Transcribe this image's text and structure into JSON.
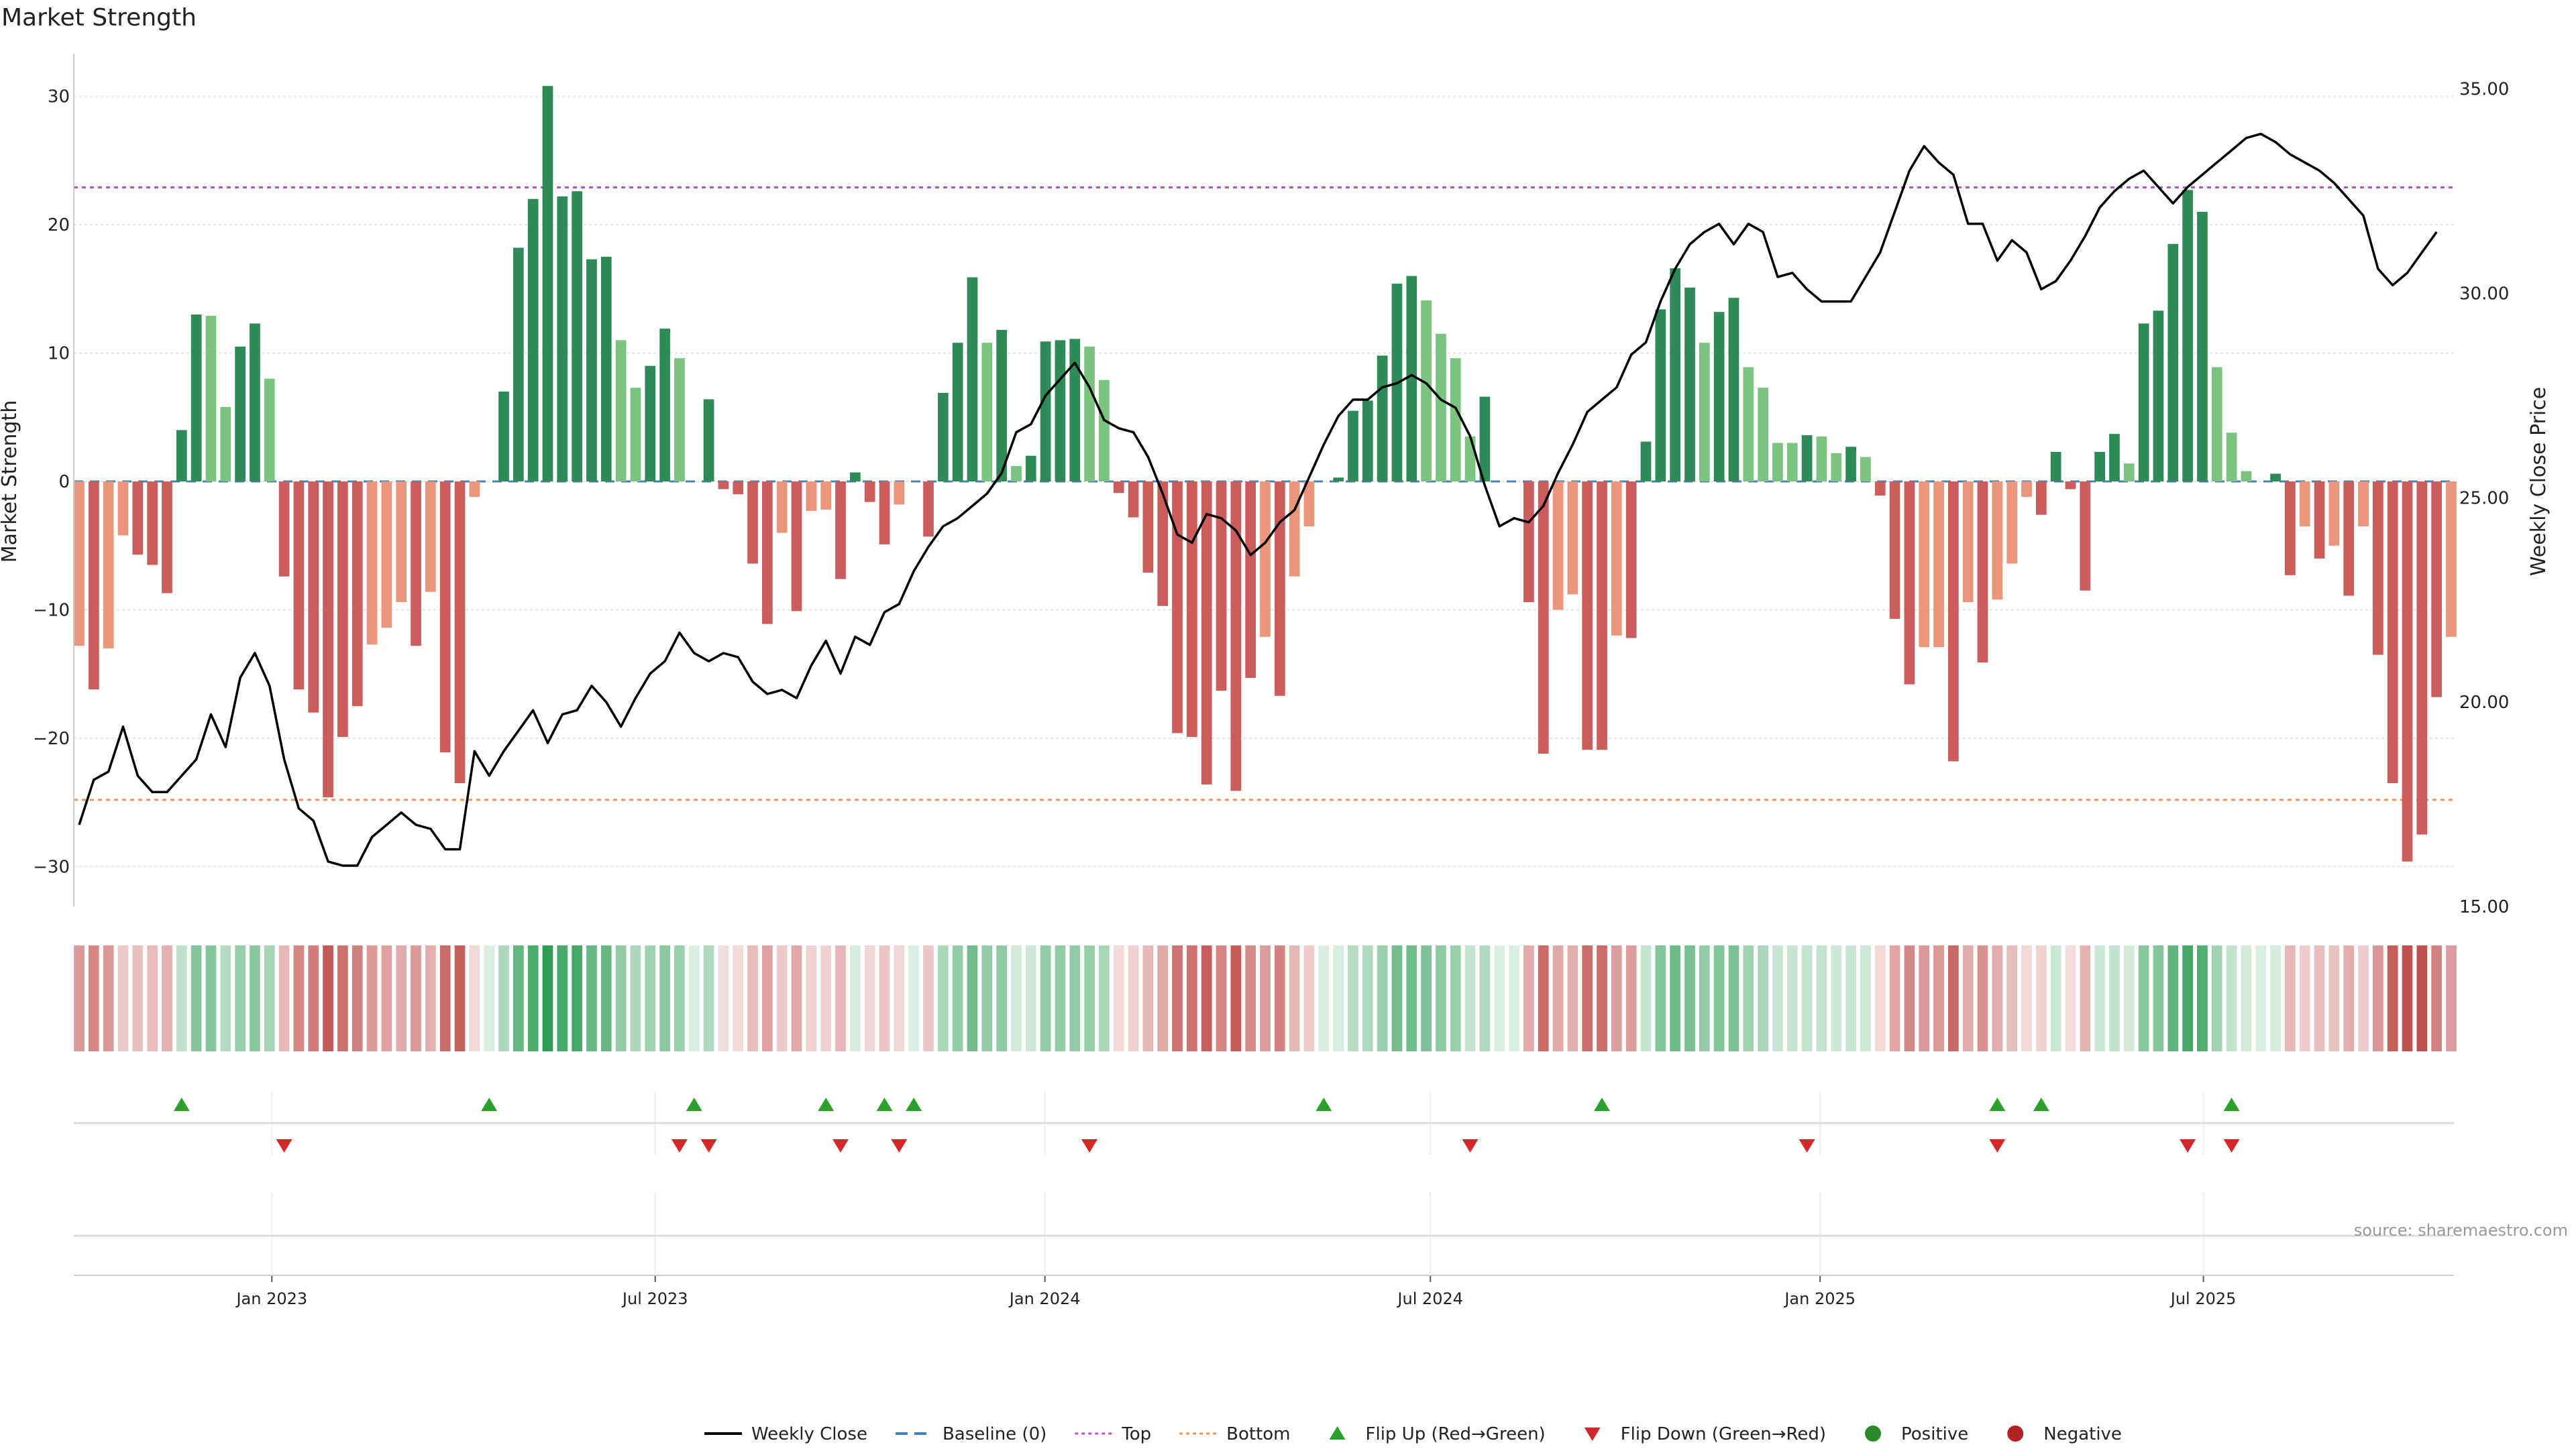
{
  "chart_data": {
    "type": "bar",
    "title": "Market Strength",
    "ylabel": "Market Strength",
    "y2label": "Weekly Close Price",
    "ylim": [
      -33,
      33
    ],
    "y2lim": [
      15,
      35.5
    ],
    "yticks": [
      -30,
      -20,
      -10,
      0,
      10,
      20,
      30
    ],
    "y2ticks": [
      "15.00",
      "20.00",
      "25.00",
      "30.00",
      "35.00"
    ],
    "x_start": "2022-10-02",
    "x_end": "2025-10-26",
    "xticks": [
      {
        "label": "Jan 2023",
        "date": "2023-01-01"
      },
      {
        "label": "Jul 2023",
        "date": "2023-07-01"
      },
      {
        "label": "Jan 2024",
        "date": "2024-01-01"
      },
      {
        "label": "Jul 2024",
        "date": "2024-07-01"
      },
      {
        "label": "Jan 2025",
        "date": "2025-01-01"
      },
      {
        "label": "Jul 2025",
        "date": "2025-07-01"
      }
    ],
    "strength": [
      -12.8,
      -16.2,
      -13.0,
      -4.2,
      -5.7,
      -6.5,
      -8.7,
      4.0,
      13.0,
      12.9,
      5.8,
      10.5,
      12.3,
      8.0,
      -7.4,
      -16.2,
      -18.0,
      -24.6,
      -19.9,
      -17.5,
      -12.7,
      -11.4,
      -9.4,
      -12.8,
      -8.6,
      -21.1,
      -23.5,
      -1.2,
      0,
      7.0,
      18.2,
      22.0,
      30.8,
      22.2,
      22.6,
      17.3,
      17.5,
      11.0,
      7.3,
      9.0,
      11.9,
      9.6,
      0,
      6.4,
      -0.6,
      -1.0,
      -6.4,
      -11.1,
      -4.0,
      -10.1,
      -2.3,
      -2.2,
      -7.6,
      0.7,
      -1.6,
      -4.9,
      -1.8,
      0,
      -4.3,
      6.9,
      10.8,
      15.9,
      10.8,
      11.8,
      1.2,
      2.0,
      10.9,
      11.0,
      11.1,
      10.5,
      7.9,
      -0.9,
      -2.8,
      -7.1,
      -9.7,
      -19.6,
      -19.9,
      -23.6,
      -16.3,
      -24.1,
      -15.3,
      -12.1,
      -16.7,
      -7.4,
      -3.5,
      0,
      0.3,
      5.5,
      6.3,
      9.8,
      15.4,
      16.0,
      14.1,
      11.5,
      9.6,
      3.5,
      6.6,
      0,
      0,
      -9.4,
      -21.2,
      -10.0,
      -8.8,
      -20.9,
      -20.9,
      -12.0,
      -12.2,
      3.1,
      13.4,
      16.6,
      15.1,
      10.8,
      13.2,
      14.3,
      8.9,
      7.3,
      3.0,
      3.0,
      3.6,
      3.5,
      2.2,
      2.7,
      1.9,
      -1.1,
      -10.7,
      -15.8,
      -12.9,
      -12.9,
      -21.8,
      -9.4,
      -14.1,
      -9.2,
      -6.4,
      -1.2,
      -2.6,
      2.3,
      -0.6,
      -8.5,
      2.3,
      3.7,
      1.4,
      12.3,
      13.3,
      18.5,
      22.7,
      21.0,
      8.9,
      3.8,
      0.8,
      0,
      0.6,
      -7.3,
      -3.5,
      -6.0,
      -5.0,
      -8.9,
      -3.5,
      -13.5,
      -23.5,
      -29.6,
      -27.5,
      -16.8,
      -12.1
    ],
    "price": [
      17.0,
      18.1,
      18.3,
      19.4,
      18.2,
      17.8,
      17.8,
      18.2,
      18.6,
      19.7,
      18.9,
      20.6,
      21.2,
      20.4,
      18.6,
      17.4,
      17.1,
      16.1,
      16.0,
      16.0,
      16.7,
      17.0,
      17.3,
      17.0,
      16.9,
      16.4,
      16.4,
      18.8,
      18.2,
      18.8,
      19.3,
      19.8,
      19.0,
      19.7,
      19.8,
      20.4,
      20.0,
      19.4,
      20.1,
      20.7,
      21.0,
      21.7,
      21.2,
      21.0,
      21.2,
      21.1,
      20.5,
      20.2,
      20.3,
      20.1,
      20.9,
      21.5,
      20.7,
      21.6,
      21.4,
      22.2,
      22.4,
      23.2,
      23.8,
      24.3,
      24.5,
      24.8,
      25.1,
      25.6,
      26.6,
      26.8,
      27.5,
      27.9,
      28.3,
      27.7,
      26.9,
      26.7,
      26.6,
      26.0,
      25.1,
      24.1,
      23.9,
      24.6,
      24.5,
      24.2,
      23.6,
      23.9,
      24.4,
      24.7,
      25.5,
      26.3,
      27.0,
      27.4,
      27.4,
      27.7,
      27.8,
      28.0,
      27.8,
      27.4,
      27.2,
      26.5,
      25.3,
      24.3,
      24.5,
      24.4,
      24.8,
      25.6,
      26.3,
      27.1,
      27.4,
      27.7,
      28.5,
      28.8,
      29.8,
      30.6,
      31.2,
      31.5,
      31.7,
      31.2,
      31.7,
      31.5,
      30.4,
      30.5,
      30.1,
      29.8,
      29.8,
      29.8,
      30.4,
      31.0,
      32.0,
      33.0,
      33.6,
      33.2,
      32.9,
      31.7,
      31.7,
      30.8,
      31.3,
      31.0,
      30.1,
      30.3,
      30.8,
      31.4,
      32.1,
      32.5,
      32.8,
      33.0,
      32.6,
      32.2,
      32.6,
      32.9,
      33.2,
      33.5,
      33.8,
      33.9,
      33.7,
      33.4,
      33.2,
      33.0,
      32.7,
      32.3,
      31.9,
      30.6,
      30.2,
      30.5,
      31.0,
      31.5
    ],
    "flip_up_weeks": [
      7,
      28,
      42,
      51,
      55,
      57,
      85,
      104,
      131,
      134,
      147
    ],
    "flip_down_weeks": [
      14,
      41,
      43,
      52,
      56,
      69,
      95,
      118,
      131,
      144,
      147
    ],
    "reference_lines": {
      "top": 22.9,
      "bottom": -24.8,
      "baseline": 0
    },
    "colors": {
      "green_strong": "#2e8b57",
      "green_light": "#7bc47f",
      "red_strong": "#cd5c5c",
      "salmon": "#e9967a",
      "price_line": "#000000",
      "top_line": "#b452cd",
      "bottom_line": "#e9955b",
      "baseline": "#4682b4",
      "marker_up": "#2ca02c",
      "marker_down": "#d62728"
    },
    "legend_position": "bottom-center",
    "legend": [
      {
        "label": "Weekly Close",
        "kind": "line"
      },
      {
        "label": "Baseline (0)",
        "kind": "dash"
      },
      {
        "label": "Top",
        "kind": "dotted-purple"
      },
      {
        "label": "Bottom",
        "kind": "dotted-orange"
      },
      {
        "label": "Flip Up (Red→Green)",
        "kind": "tri-up"
      },
      {
        "label": "Flip Down (Green→Red)",
        "kind": "tri-down"
      },
      {
        "label": "Positive",
        "kind": "dot-green"
      },
      {
        "label": "Negative",
        "kind": "dot-red"
      }
    ],
    "source_note": "source: sharemaestro.com"
  }
}
